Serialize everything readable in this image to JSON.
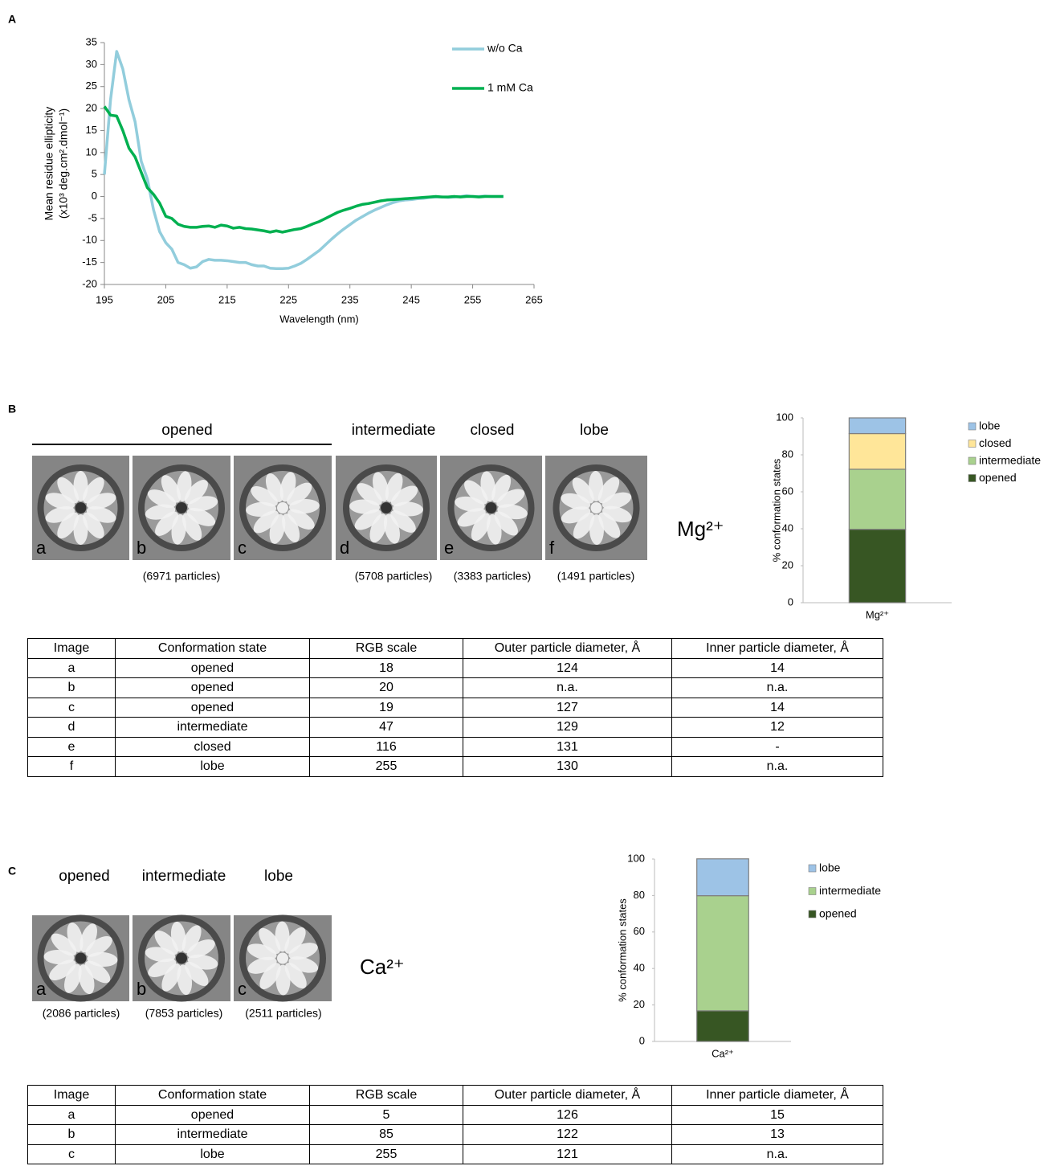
{
  "panel_a": {
    "label": "A"
  },
  "panel_b": {
    "label": "B",
    "group_label": "opened",
    "state_labels": [
      "intermediate",
      "closed",
      "lobe"
    ],
    "image_letters": [
      "a",
      "b",
      "c",
      "d",
      "e",
      "f"
    ],
    "particle_counts": [
      "(6971 particles)",
      "(5708 particles)",
      "(3383 particles)",
      "(1491 particles)"
    ],
    "ion": "Mg²⁺"
  },
  "panel_c": {
    "label": "C",
    "state_labels": [
      "opened",
      "intermediate",
      "lobe"
    ],
    "image_letters": [
      "a",
      "b",
      "c"
    ],
    "particle_counts": [
      "(2086 particles)",
      "(7853 particles)",
      "(2511 particles)"
    ],
    "ion": "Ca²⁺"
  },
  "chart_data": [
    {
      "type": "line",
      "x_label": "Wavelength (nm)",
      "y_label": "Mean residue ellipticity",
      "y_label_units": "(x10³ deg.cm².dmol⁻¹)",
      "x": [
        195,
        196,
        197,
        198,
        199,
        200,
        201,
        202,
        203,
        204,
        205,
        206,
        207,
        208,
        209,
        210,
        211,
        212,
        213,
        214,
        215,
        216,
        217,
        218,
        219,
        220,
        221,
        222,
        223,
        224,
        225,
        226,
        227,
        228,
        229,
        230,
        231,
        232,
        233,
        234,
        235,
        236,
        237,
        238,
        239,
        240,
        241,
        242,
        243,
        244,
        245,
        246,
        247,
        248,
        249,
        250,
        251,
        252,
        253,
        254,
        255,
        256,
        257,
        258,
        259,
        260
      ],
      "series": [
        {
          "name": "w/o Ca",
          "color": "#92cddc",
          "values": [
            5,
            22,
            33,
            29,
            22,
            17,
            8,
            4,
            -3,
            -8,
            -10.5,
            -12,
            -15,
            -15.5,
            -16.3,
            -16,
            -14.8,
            -14.3,
            -14.5,
            -14.5,
            -14.6,
            -14.8,
            -15,
            -15,
            -15.5,
            -15.8,
            -15.8,
            -16.3,
            -16.4,
            -16.4,
            -16.3,
            -15.8,
            -15.2,
            -14.3,
            -13.3,
            -12.3,
            -11,
            -9.7,
            -8.5,
            -7.4,
            -6.4,
            -5.4,
            -4.6,
            -3.8,
            -3.1,
            -2.5,
            -1.9,
            -1.4,
            -1,
            -0.8,
            -0.7,
            -0.5,
            -0.4,
            -0.2,
            -0.1,
            -0.1,
            -0.2,
            -0.1,
            0,
            0.2,
            0,
            0,
            0.1,
            0,
            0,
            0
          ]
        },
        {
          "name": "1 mM Ca",
          "color": "#00b050",
          "values": [
            20.5,
            18.5,
            18.3,
            15,
            11,
            9,
            5.5,
            2,
            0.5,
            -1.5,
            -4.5,
            -5,
            -6.3,
            -6.8,
            -7,
            -7,
            -6.8,
            -6.7,
            -7,
            -6.5,
            -6.7,
            -7.2,
            -7,
            -7.3,
            -7.4,
            -7.6,
            -7.8,
            -8.1,
            -7.8,
            -8.1,
            -7.8,
            -7.5,
            -7.3,
            -6.8,
            -6.2,
            -5.7,
            -5,
            -4.3,
            -3.6,
            -3.1,
            -2.7,
            -2.2,
            -1.8,
            -1.6,
            -1.3,
            -1,
            -0.8,
            -0.7,
            -0.6,
            -0.5,
            -0.4,
            -0.3,
            -0.2,
            -0.1,
            0,
            -0.1,
            -0.1,
            0,
            -0.1,
            0,
            0,
            -0.1,
            0,
            0,
            0,
            0
          ]
        }
      ],
      "xlim": [
        195,
        265
      ],
      "xticks": [
        195,
        205,
        215,
        225,
        235,
        245,
        255,
        265
      ],
      "ylim": [
        -20,
        35
      ],
      "yticks": [
        -20,
        -15,
        -10,
        -5,
        0,
        5,
        10,
        15,
        20,
        25,
        30,
        35
      ],
      "legend": "upper-right"
    },
    {
      "type": "stacked_bar",
      "y_label": "% conformation states",
      "categories": [
        "Mg²⁺"
      ],
      "series": [
        {
          "name": "opened",
          "color": "#375623",
          "values": [
            39.7
          ]
        },
        {
          "name": "intermediate",
          "color": "#a9d18e",
          "values": [
            32.5
          ]
        },
        {
          "name": "closed",
          "color": "#ffe699",
          "values": [
            19.3
          ]
        },
        {
          "name": "lobe",
          "color": "#9dc3e6",
          "values": [
            8.5
          ]
        }
      ],
      "ylim": [
        0,
        100
      ],
      "yticks": [
        0,
        20,
        40,
        60,
        80,
        100
      ],
      "legend": "right"
    },
    {
      "type": "stacked_bar",
      "y_label": "% conformation states",
      "categories": [
        "Ca²⁺"
      ],
      "series": [
        {
          "name": "opened",
          "color": "#375623",
          "values": [
            16.8
          ]
        },
        {
          "name": "intermediate",
          "color": "#a9d18e",
          "values": [
            63.1
          ]
        },
        {
          "name": "lobe",
          "color": "#9dc3e6",
          "values": [
            20.2
          ]
        }
      ],
      "ylim": [
        0,
        100
      ],
      "yticks": [
        0,
        20,
        40,
        60,
        80,
        100
      ],
      "legend": "right"
    }
  ],
  "table_b": {
    "header": [
      "Image",
      "Conformation state",
      "RGB scale",
      "Outer particle diameter, Å",
      "Inner particle diameter, Å"
    ],
    "rows": [
      [
        "a",
        "opened",
        "18",
        "124",
        "14"
      ],
      [
        "b",
        "opened",
        "20",
        "n.a.",
        "n.a."
      ],
      [
        "c",
        "opened",
        "19",
        "127",
        "14"
      ],
      [
        "d",
        "intermediate",
        "47",
        "129",
        "12"
      ],
      [
        "e",
        "closed",
        "116",
        "131",
        "-"
      ],
      [
        "f",
        "lobe",
        "255",
        "130",
        "n.a."
      ]
    ]
  },
  "table_c": {
    "header": [
      "Image",
      "Conformation state",
      "RGB scale",
      "Outer particle diameter, Å",
      "Inner particle diameter, Å"
    ],
    "rows": [
      [
        "a",
        "opened",
        "5",
        "126",
        "15"
      ],
      [
        "b",
        "intermediate",
        "85",
        "122",
        "13"
      ],
      [
        "c",
        "lobe",
        "255",
        "121",
        "n.a."
      ]
    ]
  }
}
